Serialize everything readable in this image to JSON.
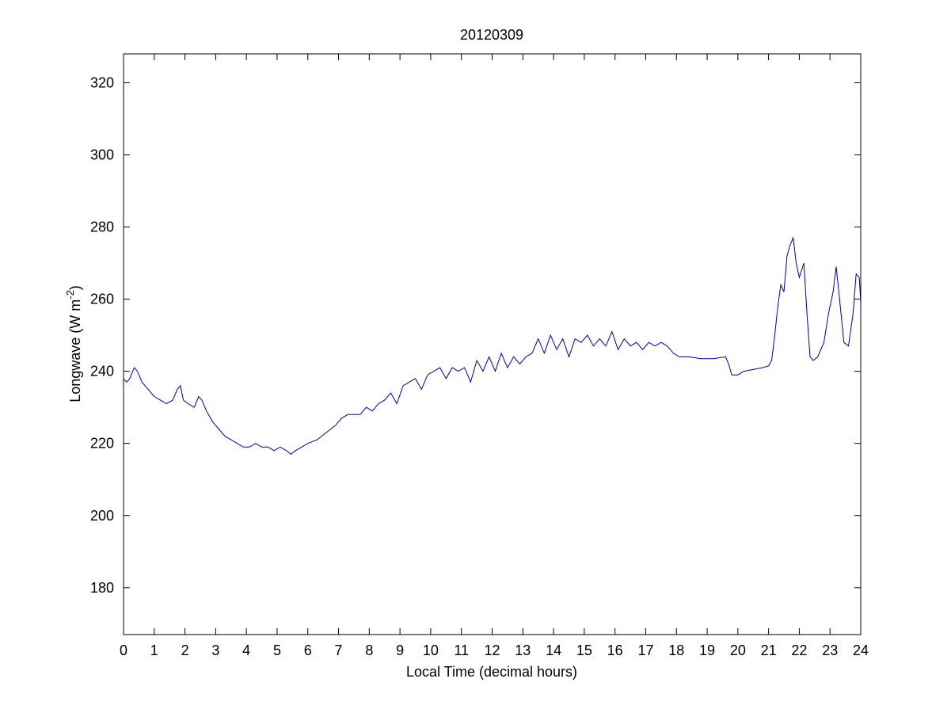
{
  "chart_data": {
    "type": "line",
    "title": "20120309",
    "xlabel": "Local Time (decimal hours)",
    "ylabel": {
      "prefix": "Longwave (W m",
      "superscript": "-2",
      "suffix": ")"
    },
    "xlim": [
      0,
      24
    ],
    "ylim": [
      167,
      328
    ],
    "xticks": [
      0,
      1,
      2,
      3,
      4,
      5,
      6,
      7,
      8,
      9,
      10,
      11,
      12,
      13,
      14,
      15,
      16,
      17,
      18,
      19,
      20,
      21,
      22,
      23,
      24
    ],
    "yticks": [
      180,
      200,
      220,
      240,
      260,
      280,
      300,
      320
    ],
    "grid": false,
    "line_color": "#0000aa",
    "series": [
      {
        "x": [
          0,
          0.1,
          0.2,
          0.35,
          0.45,
          0.6,
          0.8,
          1.0,
          1.2,
          1.4,
          1.6,
          1.75,
          1.85,
          1.95,
          2.1,
          2.3,
          2.45,
          2.55,
          2.7,
          2.9,
          3.1,
          3.3,
          3.5,
          3.7,
          3.9,
          4.1,
          4.3,
          4.5,
          4.7,
          4.9,
          5.1,
          5.3,
          5.45,
          5.6,
          5.8,
          6.0,
          6.3,
          6.6,
          6.9,
          7.1,
          7.3,
          7.5,
          7.7,
          7.9,
          8.1,
          8.3,
          8.5,
          8.7,
          8.9,
          9.1,
          9.3,
          9.5,
          9.7,
          9.9,
          10.1,
          10.3,
          10.5,
          10.7,
          10.9,
          11.1,
          11.3,
          11.5,
          11.7,
          11.9,
          12.1,
          12.3,
          12.5,
          12.7,
          12.9,
          13.1,
          13.3,
          13.5,
          13.7,
          13.9,
          14.1,
          14.3,
          14.5,
          14.7,
          14.9,
          15.1,
          15.3,
          15.5,
          15.7,
          15.9,
          16.1,
          16.3,
          16.5,
          16.7,
          16.9,
          17.1,
          17.3,
          17.5,
          17.7,
          17.9,
          18.1,
          18.4,
          18.8,
          19.2,
          19.6,
          19.7,
          19.8,
          20.0,
          20.2,
          20.5,
          20.8,
          21.0,
          21.1,
          21.2,
          21.3,
          21.4,
          21.5,
          21.6,
          21.7,
          21.8,
          21.9,
          22.0,
          22.15,
          22.25,
          22.35,
          22.45,
          22.6,
          22.8,
          22.95,
          23.1,
          23.2,
          23.3,
          23.45,
          23.6,
          23.75,
          23.85,
          23.95,
          24.0
        ],
        "y": [
          238,
          237,
          238,
          241,
          240,
          237,
          235,
          233,
          232,
          231,
          232,
          235,
          236,
          232,
          231,
          230,
          233,
          232,
          229,
          226,
          224,
          222,
          221,
          220,
          219,
          219,
          220,
          219,
          219,
          218,
          219,
          218,
          217,
          218,
          219,
          220,
          221,
          223,
          225,
          227,
          228,
          228,
          228,
          230,
          229,
          231,
          232,
          234,
          231,
          236,
          237,
          238,
          235,
          239,
          240,
          241,
          238,
          241,
          240,
          241,
          237,
          243,
          240,
          244,
          240,
          245,
          241,
          244,
          242,
          244,
          245,
          249,
          245,
          250,
          246,
          249,
          244,
          249,
          248,
          250,
          247,
          249,
          247,
          251,
          246,
          249,
          247,
          248,
          246,
          248,
          247,
          248,
          247,
          245,
          244,
          244,
          243.5,
          243.5,
          244,
          242,
          239,
          239,
          240,
          240.5,
          241,
          241.5,
          243,
          250,
          258,
          264,
          262,
          272,
          275,
          277,
          270,
          266,
          270,
          256,
          244,
          243,
          244,
          248,
          256,
          262,
          269,
          261,
          248,
          247,
          256,
          267,
          266,
          259
        ]
      }
    ]
  }
}
